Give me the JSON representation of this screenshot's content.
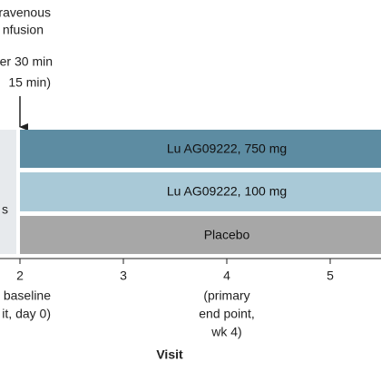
{
  "annotation": {
    "lines": [
      "ravenous",
      "nfusion",
      "er 30 min",
      "15 min)"
    ]
  },
  "left_box": {
    "label": "s"
  },
  "arms": [
    {
      "label": "Lu AG09222, 750 mg"
    },
    {
      "label": "Lu AG09222, 100 mg"
    },
    {
      "label": "Placebo"
    }
  ],
  "axis": {
    "title": "Visit",
    "ticks": [
      "2",
      "3",
      "4",
      "5"
    ],
    "notes": [
      {
        "lines": [
          "baseline",
          "it, day 0)"
        ]
      },
      {
        "lines": [
          "(primary",
          "end point,",
          "wk 4)"
        ]
      }
    ]
  }
}
